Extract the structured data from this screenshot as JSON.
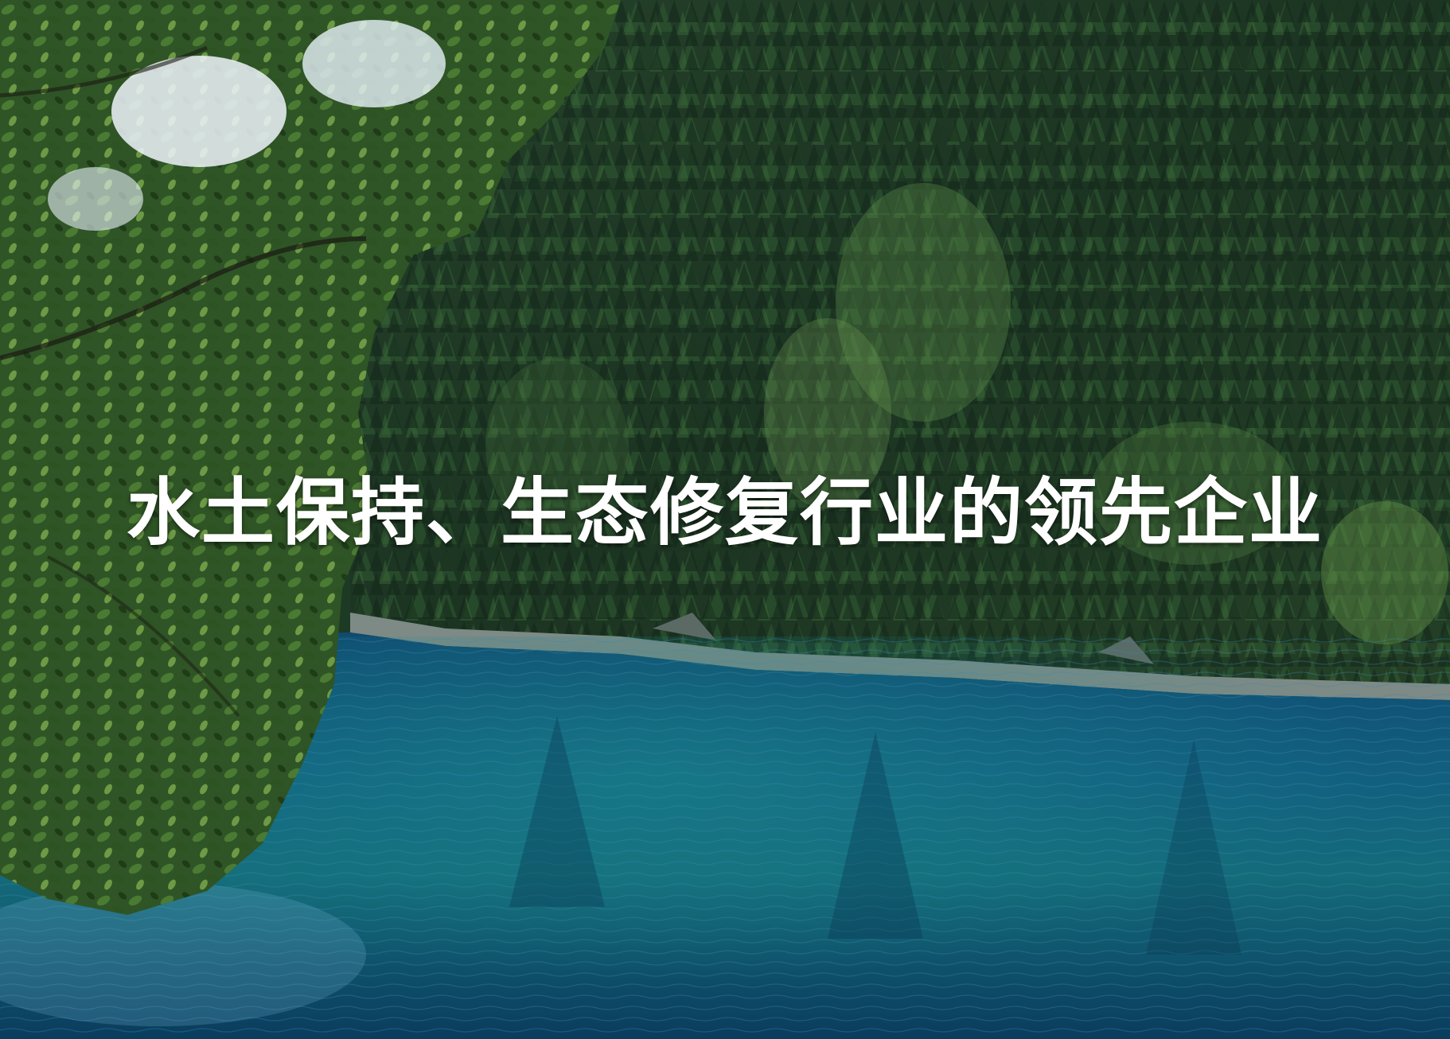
{
  "slide": {
    "headline": "水土保持、生态修复行业的领先企业"
  },
  "colors": {
    "sky": "#dfeefa",
    "mountain_rock": "#6e7c80",
    "forest_dark": "#1c3422",
    "forest_mid": "#2f5a32",
    "forest_light": "#5f8f4a",
    "shoreline_rock": "#7d8a86",
    "lake_deep": "#0b3f63",
    "lake_mid": "#11597e",
    "lake_teal": "#177c84",
    "foliage": "#3f6a2c",
    "text": "#ffffff"
  }
}
